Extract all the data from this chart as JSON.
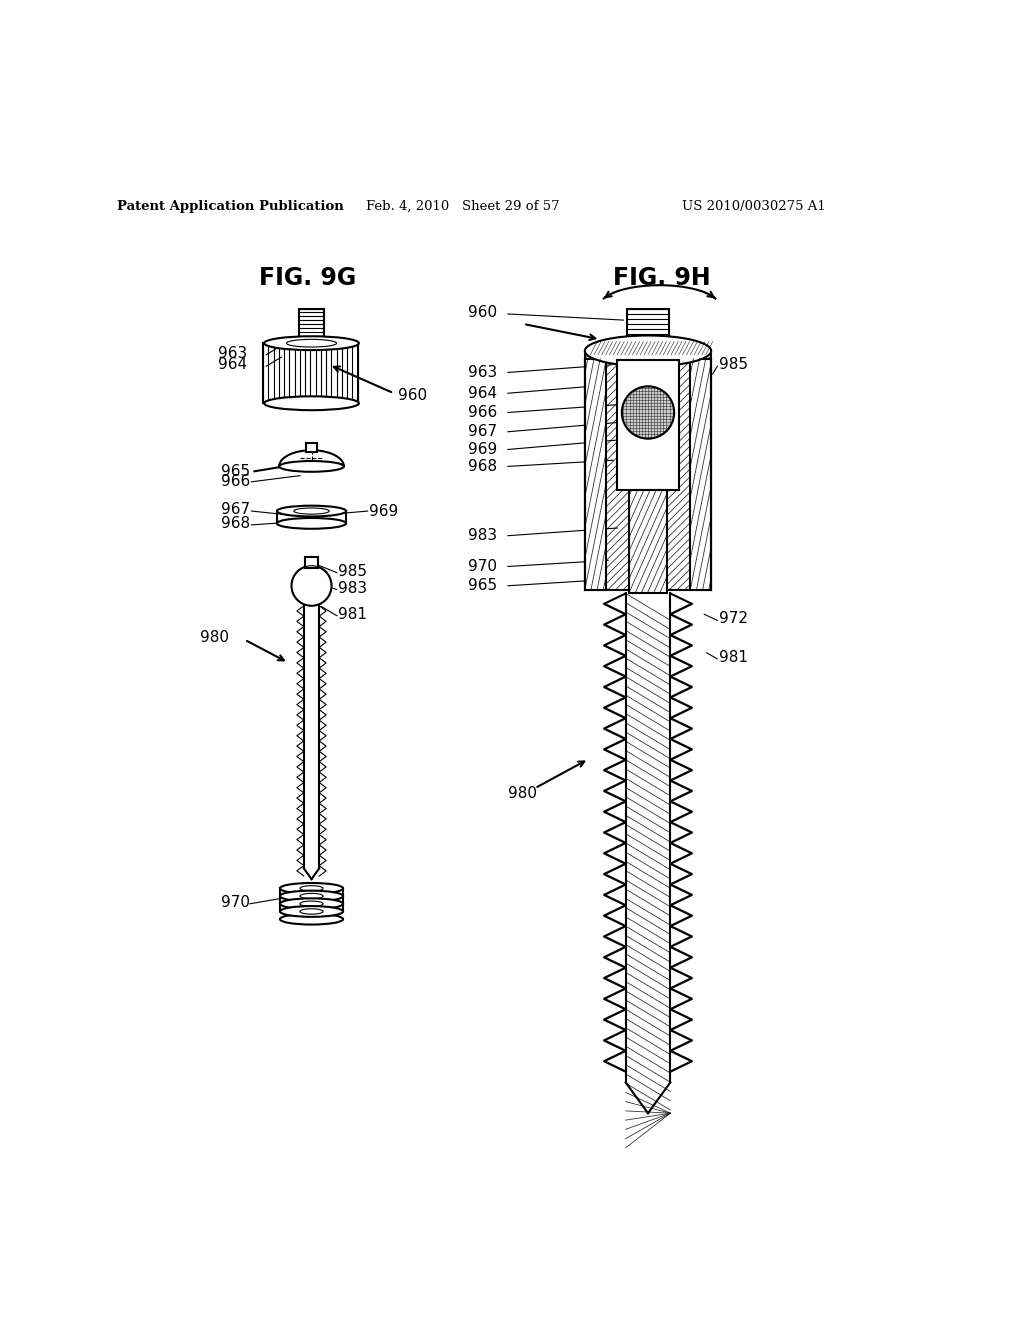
{
  "header_left": "Patent Application Publication",
  "header_center": "Feb. 4, 2010   Sheet 29 of 57",
  "header_right": "US 2010/0030275 A1",
  "title_left": "FIG. 9G",
  "title_right": "FIG. 9H",
  "background_color": "#ffffff",
  "line_color": "#000000",
  "light_gray": "#cccccc"
}
